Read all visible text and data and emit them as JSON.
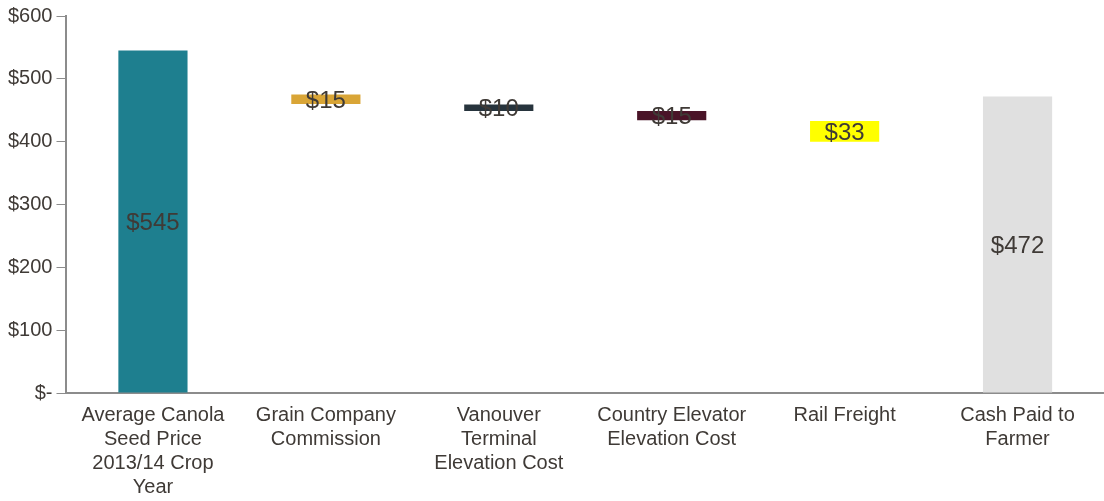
{
  "chart_data": {
    "type": "bar",
    "categories": [
      "Average Canola Seed Price 2013/14 Crop Year",
      "Grain Company Commission",
      "Vanouver Terminal Elevation Cost",
      "Country Elevator Elevation Cost",
      "Rail Freight",
      "Cash Paid to Farmer"
    ],
    "values": [
      545,
      15,
      10,
      15,
      33,
      472
    ],
    "base": [
      0,
      460,
      449,
      434,
      400,
      0
    ],
    "colors": [
      "#1e7f8f",
      "#d9a536",
      "#27343d",
      "#4a1428",
      "#ffff00",
      "#e0e0e0"
    ],
    "value_labels": [
      "$545",
      "$15",
      "$10",
      "$15",
      "$33",
      "$472"
    ],
    "ylim": [
      0,
      600
    ],
    "yticks": [
      {
        "value": 0,
        "label": "$-"
      },
      {
        "value": 100,
        "label": "$100"
      },
      {
        "value": 200,
        "label": "$200"
      },
      {
        "value": 300,
        "label": "$300"
      },
      {
        "value": 400,
        "label": "$400"
      },
      {
        "value": 500,
        "label": "$500"
      },
      {
        "value": 600,
        "label": "$600"
      }
    ],
    "grid": false,
    "legend": false
  }
}
